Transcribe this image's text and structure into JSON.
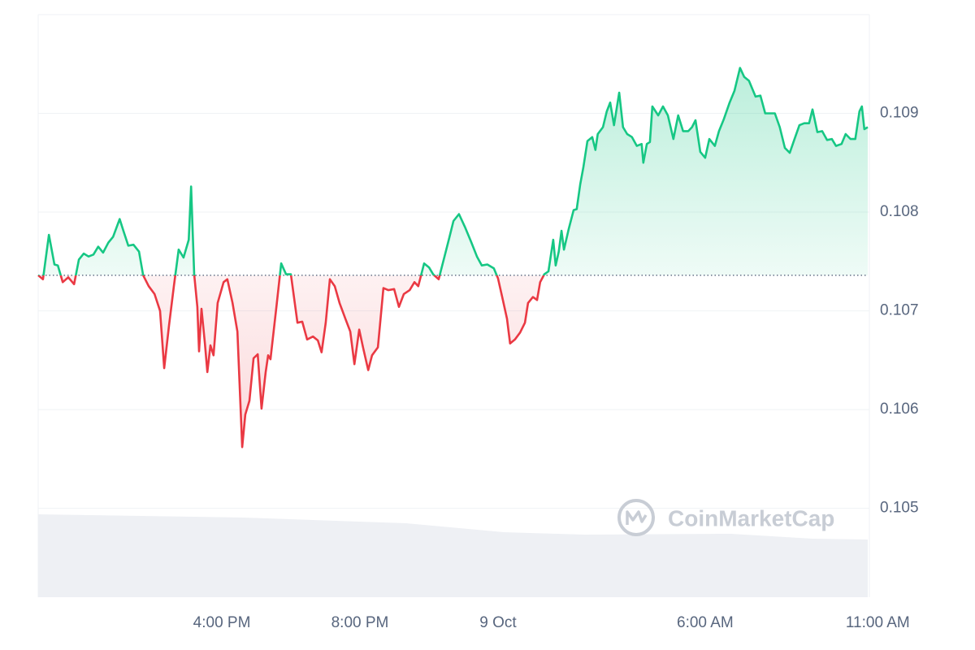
{
  "chart_data": {
    "type": "line",
    "watermark": "CoinMarketCap",
    "x": [
      -13.32,
      -13.18,
      -13.01,
      -12.85,
      -12.75,
      -12.61,
      -12.45,
      -12.28,
      -12.14,
      -12.0,
      -11.86,
      -11.72,
      -11.58,
      -11.44,
      -11.29,
      -11.15,
      -10.96,
      -10.85,
      -10.71,
      -10.56,
      -10.4,
      -10.28,
      -10.12,
      -9.95,
      -9.79,
      -9.67,
      -9.53,
      -9.39,
      -9.25,
      -9.11,
      -8.96,
      -8.89,
      -8.8,
      -8.71,
      -8.66,
      -8.59,
      -8.49,
      -8.42,
      -8.33,
      -8.24,
      -8.12,
      -7.95,
      -7.84,
      -7.69,
      -7.55,
      -7.41,
      -7.32,
      -7.2,
      -7.08,
      -6.96,
      -6.85,
      -6.73,
      -6.66,
      -6.59,
      -6.42,
      -6.28,
      -6.14,
      -6.0,
      -5.81,
      -5.67,
      -5.53,
      -5.36,
      -5.22,
      -5.11,
      -4.99,
      -4.87,
      -4.73,
      -4.59,
      -4.42,
      -4.28,
      -4.16,
      -4.02,
      -3.91,
      -3.76,
      -3.65,
      -3.48,
      -3.32,
      -3.18,
      -3.01,
      -2.87,
      -2.73,
      -2.56,
      -2.42,
      -2.31,
      -2.14,
      -2.0,
      -1.88,
      -1.72,
      -1.55,
      -1.41,
      -1.29,
      -1.13,
      -0.96,
      -0.78,
      -0.61,
      -0.47,
      -0.31,
      -0.12,
      0.0,
      0.14,
      0.26,
      0.35,
      0.49,
      0.64,
      0.78,
      0.87,
      1.01,
      1.13,
      1.22,
      1.34,
      1.46,
      1.6,
      1.67,
      1.76,
      1.84,
      1.91,
      2.05,
      2.19,
      2.28,
      2.38,
      2.47,
      2.59,
      2.73,
      2.82,
      2.89,
      3.04,
      3.15,
      3.25,
      3.36,
      3.51,
      3.62,
      3.74,
      3.88,
      4.02,
      4.16,
      4.21,
      4.31,
      4.4,
      4.47,
      4.64,
      4.78,
      4.92,
      5.08,
      5.22,
      5.36,
      5.51,
      5.62,
      5.72,
      5.86,
      6.0,
      6.12,
      6.28,
      6.4,
      6.54,
      6.71,
      6.85,
      7.01,
      7.13,
      7.27,
      7.46,
      7.6,
      7.74,
      8.02,
      8.16,
      8.31,
      8.45,
      8.59,
      8.73,
      8.87,
      9.01,
      9.11,
      9.25,
      9.39,
      9.53,
      9.67,
      9.79,
      9.95,
      10.07,
      10.21,
      10.35,
      10.47,
      10.54,
      10.61,
      10.71
    ],
    "values": [
      0.10736,
      0.10732,
      0.10777,
      0.10747,
      0.10746,
      0.10729,
      0.10734,
      0.10727,
      0.10752,
      0.10758,
      0.10755,
      0.10757,
      0.10765,
      0.10759,
      0.10769,
      0.10775,
      0.10793,
      0.10781,
      0.10766,
      0.10767,
      0.1076,
      0.10736,
      0.10725,
      0.10717,
      0.107,
      0.10642,
      0.10685,
      0.10725,
      0.10762,
      0.10754,
      0.10772,
      0.10826,
      0.10737,
      0.10704,
      0.10659,
      0.10702,
      0.10667,
      0.10638,
      0.10665,
      0.10655,
      0.10708,
      0.10729,
      0.10732,
      0.10708,
      0.10679,
      0.10562,
      0.10595,
      0.10609,
      0.10652,
      0.10656,
      0.10601,
      0.10638,
      0.10655,
      0.10651,
      0.10704,
      0.10748,
      0.10737,
      0.10737,
      0.10688,
      0.10689,
      0.10671,
      0.10674,
      0.1067,
      0.10658,
      0.10688,
      0.10732,
      0.10725,
      0.10708,
      0.10692,
      0.10679,
      0.10646,
      0.10681,
      0.10663,
      0.1064,
      0.10655,
      0.10663,
      0.10723,
      0.10721,
      0.10722,
      0.10704,
      0.10717,
      0.10721,
      0.10729,
      0.10725,
      0.10748,
      0.10744,
      0.10737,
      0.10732,
      0.10755,
      0.10774,
      0.10791,
      0.10798,
      0.10785,
      0.1077,
      0.10755,
      0.10746,
      0.10747,
      0.10743,
      0.10733,
      0.10711,
      0.10692,
      0.10667,
      0.10671,
      0.10678,
      0.10688,
      0.10708,
      0.10714,
      0.10711,
      0.10729,
      0.10737,
      0.1074,
      0.10772,
      0.10746,
      0.1076,
      0.10781,
      0.10762,
      0.10783,
      0.10802,
      0.10803,
      0.10828,
      0.10845,
      0.10872,
      0.10876,
      0.10863,
      0.10879,
      0.10886,
      0.10902,
      0.10911,
      0.10888,
      0.10921,
      0.10886,
      0.10879,
      0.10876,
      0.10867,
      0.10869,
      0.1085,
      0.10869,
      0.10871,
      0.10907,
      0.10898,
      0.10907,
      0.10898,
      0.10874,
      0.10898,
      0.10882,
      0.10882,
      0.10886,
      0.10893,
      0.10861,
      0.10855,
      0.10874,
      0.10867,
      0.10882,
      0.10894,
      0.10911,
      0.10923,
      0.10946,
      0.10937,
      0.10933,
      0.10917,
      0.10918,
      0.109,
      0.109,
      0.10886,
      0.10865,
      0.1086,
      0.10874,
      0.10888,
      0.1089,
      0.1089,
      0.10904,
      0.10881,
      0.10882,
      0.10873,
      0.10874,
      0.10867,
      0.10869,
      0.10879,
      0.10874,
      0.10874,
      0.10902,
      0.10907,
      0.10884,
      0.10886
    ],
    "up_color": "#16c784",
    "down_color": "#ea3943",
    "xlim": [
      -13.32,
      10.71
    ],
    "xticks": [
      {
        "value": -8,
        "label": "4:00 PM"
      },
      {
        "value": -4,
        "label": "8:00 PM"
      },
      {
        "value": 0,
        "label": "9 Oct"
      },
      {
        "value": 6,
        "label": "6:00 AM"
      },
      {
        "value": 11,
        "label": "11:00 AM"
      }
    ],
    "ylim": [
      0.1041,
      0.11
    ],
    "yticks": [
      0.105,
      0.106,
      0.107,
      0.108,
      0.109
    ],
    "grid": true
  }
}
